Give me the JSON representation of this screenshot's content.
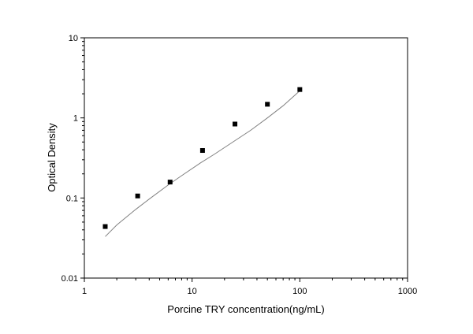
{
  "chart_data": {
    "type": "scatter",
    "title": "",
    "xlabel": "Porcine TRY concentration(ng/mL)",
    "ylabel": "Optical Density",
    "x_scale": "log",
    "y_scale": "log",
    "xlim": [
      1,
      1000
    ],
    "ylim": [
      0.01,
      10
    ],
    "x_ticks": [
      1,
      10,
      100,
      1000
    ],
    "x_tick_labels": [
      "1",
      "10",
      "100",
      "1000"
    ],
    "y_ticks": [
      0.01,
      0.1,
      1,
      10
    ],
    "y_tick_labels": [
      "0.01",
      "0.1",
      "1",
      "10"
    ],
    "grid": false,
    "legend": "none",
    "series": [
      {
        "kind": "points",
        "marker": "square",
        "color": "#000000",
        "x": [
          1.5625,
          3.125,
          6.25,
          12.5,
          25,
          50,
          100
        ],
        "y": [
          0.044,
          0.106,
          0.158,
          0.392,
          0.838,
          1.48,
          2.26
        ]
      },
      {
        "kind": "fit-line",
        "color": "#808080",
        "x": [
          1.5625,
          2,
          3,
          4,
          6,
          8,
          12,
          16,
          25,
          35,
          50,
          70,
          100
        ],
        "y": [
          0.033,
          0.046,
          0.072,
          0.097,
          0.145,
          0.19,
          0.275,
          0.35,
          0.52,
          0.7,
          1.0,
          1.42,
          2.18
        ]
      }
    ]
  }
}
